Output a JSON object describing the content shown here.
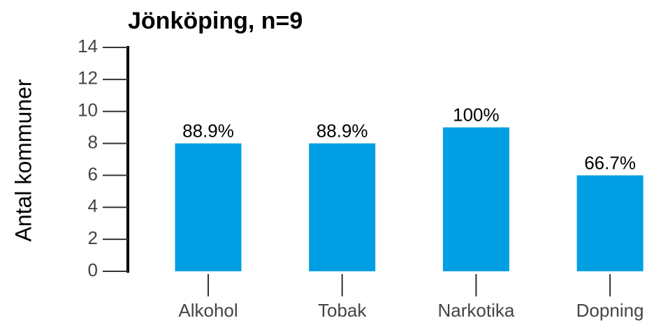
{
  "chart_data": {
    "type": "bar",
    "title": "Jönköping, n=9",
    "y_label": "Antal kommuner",
    "categories": [
      "Alkohol",
      "Tobak",
      "Narkotika",
      "Dopning"
    ],
    "values": [
      8,
      8,
      9,
      6
    ],
    "bar_labels": [
      "88.9%",
      "88.9%",
      "100%",
      "66.7%"
    ],
    "color": "#009fe3",
    "ylim": [
      0,
      14
    ],
    "yticks": [
      0,
      2,
      4,
      6,
      8,
      10,
      12,
      14
    ],
    "grid": false
  }
}
